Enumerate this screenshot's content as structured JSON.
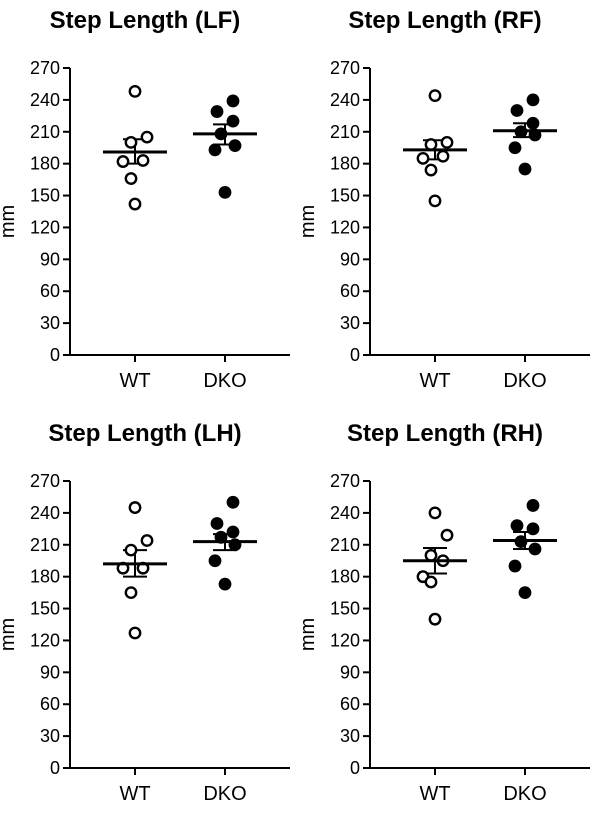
{
  "chart_data": [
    {
      "type": "scatter",
      "title": "Step Length (LF)",
      "xlabel": "",
      "ylabel": "mm",
      "ylim": [
        0,
        270
      ],
      "yticks": [
        0,
        30,
        60,
        90,
        120,
        150,
        180,
        210,
        240,
        270
      ],
      "categories": [
        "WT",
        "DKO"
      ],
      "grid": false,
      "series": [
        {
          "category": "WT",
          "marker": "open-circle",
          "points": [
            248,
            205,
            200,
            183,
            182,
            166,
            142
          ],
          "mean": 191,
          "sem_low": 180,
          "sem_high": 203
        },
        {
          "category": "DKO",
          "marker": "filled-circle",
          "points": [
            239,
            229,
            220,
            208,
            197,
            193,
            153
          ],
          "mean": 208,
          "sem_low": 198,
          "sem_high": 217
        }
      ]
    },
    {
      "type": "scatter",
      "title": "Step Length (RF)",
      "xlabel": "",
      "ylabel": "mm",
      "ylim": [
        0,
        270
      ],
      "yticks": [
        0,
        30,
        60,
        90,
        120,
        150,
        180,
        210,
        240,
        270
      ],
      "categories": [
        "WT",
        "DKO"
      ],
      "grid": false,
      "series": [
        {
          "category": "WT",
          "marker": "open-circle",
          "points": [
            244,
            200,
            198,
            187,
            185,
            174,
            145
          ],
          "mean": 193,
          "sem_low": 184,
          "sem_high": 202
        },
        {
          "category": "DKO",
          "marker": "filled-circle",
          "points": [
            240,
            230,
            218,
            210,
            207,
            195,
            175
          ],
          "mean": 211,
          "sem_low": 205,
          "sem_high": 218
        }
      ]
    },
    {
      "type": "scatter",
      "title": "Step Length (LH)",
      "xlabel": "",
      "ylabel": "mm",
      "ylim": [
        0,
        270
      ],
      "yticks": [
        0,
        30,
        60,
        90,
        120,
        150,
        180,
        210,
        240,
        270
      ],
      "categories": [
        "WT",
        "DKO"
      ],
      "grid": false,
      "series": [
        {
          "category": "WT",
          "marker": "open-circle",
          "points": [
            245,
            214,
            205,
            188,
            188,
            165,
            127
          ],
          "mean": 192,
          "sem_low": 180,
          "sem_high": 205
        },
        {
          "category": "DKO",
          "marker": "filled-circle",
          "points": [
            250,
            230,
            222,
            217,
            210,
            195,
            173
          ],
          "mean": 213,
          "sem_low": 205,
          "sem_high": 220
        }
      ]
    },
    {
      "type": "scatter",
      "title": "Step Length (RH)",
      "xlabel": "",
      "ylabel": "mm",
      "ylim": [
        0,
        270
      ],
      "yticks": [
        0,
        30,
        60,
        90,
        120,
        150,
        180,
        210,
        240,
        270
      ],
      "categories": [
        "WT",
        "DKO"
      ],
      "grid": false,
      "series": [
        {
          "category": "WT",
          "marker": "open-circle",
          "points": [
            240,
            219,
            200,
            195,
            180,
            175,
            140
          ],
          "mean": 195,
          "sem_low": 183,
          "sem_high": 207
        },
        {
          "category": "DKO",
          "marker": "filled-circle",
          "points": [
            247,
            228,
            225,
            213,
            206,
            190,
            165
          ],
          "mean": 214,
          "sem_low": 206,
          "sem_high": 222
        }
      ]
    }
  ]
}
